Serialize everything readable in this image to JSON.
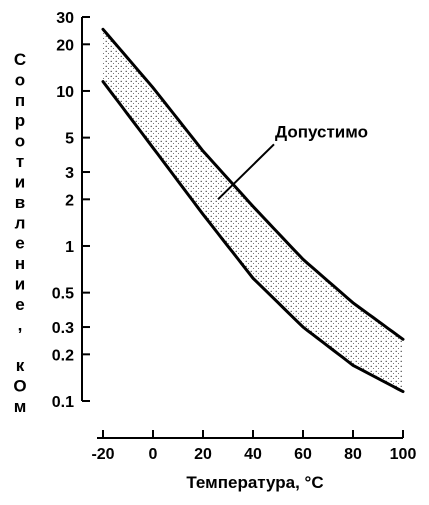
{
  "chart_data": {
    "type": "line",
    "xlabel": "Температура, °C",
    "ylabel": "Сопротивление, кОм",
    "y_scale": "log",
    "xlim": [
      -20,
      100
    ],
    "ylim": [
      0.1,
      30
    ],
    "x_ticks": [
      -20,
      0,
      20,
      40,
      60,
      80,
      100
    ],
    "x_tick_labels": [
      "-20",
      "0",
      "20",
      "40",
      "60",
      "80",
      "100"
    ],
    "y_ticks": [
      30,
      20,
      10,
      5,
      3,
      2,
      1,
      0.5,
      0.3,
      0.2,
      0.1
    ],
    "y_tick_labels": [
      "30",
      "20",
      "10",
      "5",
      "3",
      "2",
      "1",
      "0.5",
      "0.3",
      "0.2",
      "0.1"
    ],
    "grid": false,
    "series": [
      {
        "x": [
          -20,
          0,
          20,
          40,
          60,
          80,
          100
        ],
        "y": [
          25,
          10.5,
          4.1,
          1.8,
          0.82,
          0.43,
          0.25
        ],
        "color": "#000000"
      },
      {
        "x": [
          -20,
          0,
          20,
          40,
          60,
          80,
          100
        ],
        "y": [
          11.5,
          4.3,
          1.6,
          0.62,
          0.3,
          0.17,
          0.115
        ],
        "color": "#000000"
      }
    ],
    "band_fill": "stippled region between the two curves",
    "annotation": {
      "text": "Допустимо",
      "x": 26,
      "y": 2.0
    }
  }
}
